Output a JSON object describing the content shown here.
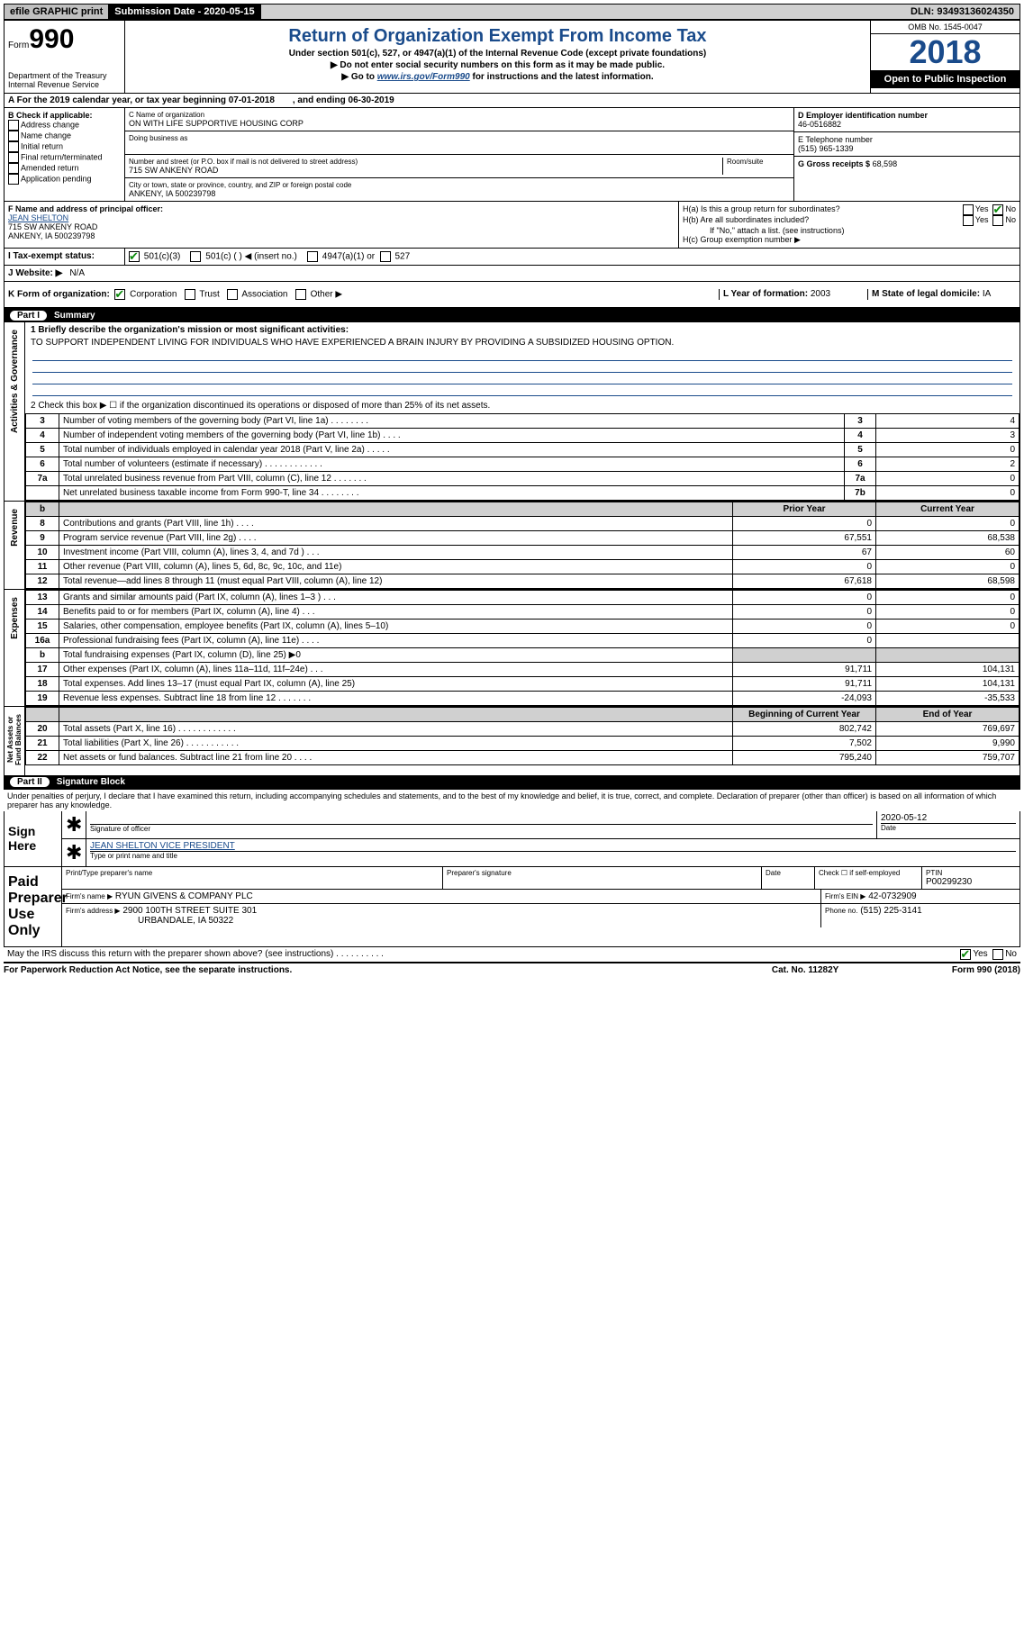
{
  "top": {
    "efile": "efile GRAPHIC print",
    "sub_label": "Submission Date - 2020-05-15",
    "dln": "DLN: 93493136024350"
  },
  "header": {
    "form_label": "Form",
    "form_num": "990",
    "dept": "Department of the Treasury\nInternal Revenue Service",
    "title": "Return of Organization Exempt From Income Tax",
    "sub1": "Under section 501(c), 527, or 4947(a)(1) of the Internal Revenue Code (except private foundations)",
    "sub2": "▶ Do not enter social security numbers on this form as it may be made public.",
    "sub3_pre": "▶ Go to ",
    "sub3_link": "www.irs.gov/Form990",
    "sub3_post": " for instructions and the latest information.",
    "omb": "OMB No. 1545-0047",
    "year": "2018",
    "open": "Open to Public Inspection"
  },
  "rowA": {
    "text_a": "A For the 2019 calendar year, or tax year beginning 07-01-2018",
    "text_b": ", and ending 06-30-2019"
  },
  "B": {
    "label": "B Check if applicable:",
    "opts": [
      "Address change",
      "Name change",
      "Initial return",
      "Final return/terminated",
      "Amended return",
      "Application pending"
    ]
  },
  "C": {
    "label": "C Name of organization",
    "org": "ON WITH LIFE SUPPORTIVE HOUSING CORP",
    "dba_label": "Doing business as",
    "addr_label": "Number and street (or P.O. box if mail is not delivered to street address)",
    "room": "Room/suite",
    "street": "715 SW ANKENY ROAD",
    "city_label": "City or town, state or province, country, and ZIP or foreign postal code",
    "city": "ANKENY, IA  500239798"
  },
  "D": {
    "label": "D Employer identification number",
    "val": "46-0516882"
  },
  "E": {
    "label": "E Telephone number",
    "val": "(515) 965-1339"
  },
  "G": {
    "label": "G Gross receipts $",
    "val": "68,598"
  },
  "F": {
    "label": "F  Name and address of principal officer:",
    "name": "JEAN SHELTON",
    "l1": "715 SW ANKENY ROAD",
    "l2": "ANKENY, IA  500239798"
  },
  "H": {
    "a": "H(a)  Is this a group return for subordinates?",
    "b": "H(b)  Are all subordinates included?",
    "b_note": "If \"No,\" attach a list. (see instructions)",
    "c": "H(c)  Group exemption number ▶",
    "yes": "Yes",
    "no": "No"
  },
  "I": {
    "label": "I  Tax-exempt status:",
    "o1": "501(c)(3)",
    "o2": "501(c) (  ) ◀ (insert no.)",
    "o3": "4947(a)(1) or",
    "o4": "527"
  },
  "J": {
    "label": "J  Website: ▶",
    "val": "N/A"
  },
  "K": {
    "label": "K Form of organization:",
    "o1": "Corporation",
    "o2": "Trust",
    "o3": "Association",
    "o4": "Other ▶"
  },
  "L": {
    "label": "L Year of formation:",
    "val": "2003"
  },
  "M": {
    "label": "M State of legal domicile:",
    "val": "IA"
  },
  "part1": {
    "label": "Part I",
    "title": "Summary"
  },
  "summary": {
    "q1": "1  Briefly describe the organization's mission or most significant activities:",
    "mission": "TO SUPPORT INDEPENDENT LIVING FOR INDIVIDUALS WHO HAVE EXPERIENCED A BRAIN INJURY BY PROVIDING A SUBSIDIZED HOUSING OPTION.",
    "q2": "2  Check this box ▶ ☐  if the organization discontinued its operations or disposed of more than 25% of its net assets.",
    "rows_top": [
      {
        "n": "3",
        "t": "Number of voting members of the governing body (Part VI, line 1a)  .   .   .   .   .   .   .   .",
        "b": "3",
        "v": "4"
      },
      {
        "n": "4",
        "t": "Number of independent voting members of the governing body (Part VI, line 1b)  .   .   .   .",
        "b": "4",
        "v": "3"
      },
      {
        "n": "5",
        "t": "Total number of individuals employed in calendar year 2018 (Part V, line 2a)  .   .   .   .   .",
        "b": "5",
        "v": "0"
      },
      {
        "n": "6",
        "t": "Total number of volunteers (estimate if necessary)   .   .   .   .   .   .   .   .   .   .   .   .",
        "b": "6",
        "v": "2"
      },
      {
        "n": "7a",
        "t": "Total unrelated business revenue from Part VIII, column (C), line 12  .   .   .   .   .   .   .",
        "b": "7a",
        "v": "0"
      },
      {
        "n": "",
        "t": "Net unrelated business taxable income from Form 990-T, line 34   .   .   .   .   .   .   .   .",
        "b": "7b",
        "v": "0"
      }
    ],
    "col_prior": "Prior Year",
    "col_curr": "Current Year",
    "rev": [
      {
        "n": "8",
        "t": "Contributions and grants (Part VIII, line 1h)   .   .   .   .",
        "p": "0",
        "c": "0"
      },
      {
        "n": "9",
        "t": "Program service revenue (Part VIII, line 2g)   .   .   .   .",
        "p": "67,551",
        "c": "68,538"
      },
      {
        "n": "10",
        "t": "Investment income (Part VIII, column (A), lines 3, 4, and 7d )   .   .   .",
        "p": "67",
        "c": "60"
      },
      {
        "n": "11",
        "t": "Other revenue (Part VIII, column (A), lines 5, 6d, 8c, 9c, 10c, and 11e)",
        "p": "0",
        "c": "0"
      },
      {
        "n": "12",
        "t": "Total revenue—add lines 8 through 11 (must equal Part VIII, column (A), line 12)",
        "p": "67,618",
        "c": "68,598"
      }
    ],
    "exp": [
      {
        "n": "13",
        "t": "Grants and similar amounts paid (Part IX, column (A), lines 1–3 )  .   .   .",
        "p": "0",
        "c": "0"
      },
      {
        "n": "14",
        "t": "Benefits paid to or for members (Part IX, column (A), line 4)  .   .   .",
        "p": "0",
        "c": "0"
      },
      {
        "n": "15",
        "t": "Salaries, other compensation, employee benefits (Part IX, column (A), lines 5–10)",
        "p": "0",
        "c": "0"
      },
      {
        "n": "16a",
        "t": "Professional fundraising fees (Part IX, column (A), line 11e)  .   .   .   .",
        "p": "0",
        "c": ""
      },
      {
        "n": "b",
        "t": "Total fundraising expenses (Part IX, column (D), line 25) ▶0",
        "p": "",
        "c": "",
        "shade": true
      },
      {
        "n": "17",
        "t": "Other expenses (Part IX, column (A), lines 11a–11d, 11f–24e)  .   .   .",
        "p": "91,711",
        "c": "104,131"
      },
      {
        "n": "18",
        "t": "Total expenses. Add lines 13–17 (must equal Part IX, column (A), line 25)",
        "p": "91,711",
        "c": "104,131"
      },
      {
        "n": "19",
        "t": "Revenue less expenses. Subtract line 18 from line 12 .   .   .   .   .   .   .",
        "p": "-24,093",
        "c": "-35,533"
      }
    ],
    "col_begin": "Beginning of Current Year",
    "col_end": "End of Year",
    "net": [
      {
        "n": "20",
        "t": "Total assets (Part X, line 16)  .   .   .   .   .   .   .   .   .   .   .   .",
        "p": "802,742",
        "c": "769,697"
      },
      {
        "n": "21",
        "t": "Total liabilities (Part X, line 26)  .   .   .   .   .   .   .   .   .   .   .",
        "p": "7,502",
        "c": "9,990"
      },
      {
        "n": "22",
        "t": "Net assets or fund balances. Subtract line 21 from line 20  .   .   .   .",
        "p": "795,240",
        "c": "759,707"
      }
    ]
  },
  "vlabels": {
    "ag": "Activities & Governance",
    "rev": "Revenue",
    "exp": "Expenses",
    "net": "Net Assets or\nFund Balances"
  },
  "part2": {
    "label": "Part II",
    "title": "Signature Block"
  },
  "perjury": "Under penalties of perjury, I declare that I have examined this return, including accompanying schedules and statements, and to the best of my knowledge and belief, it is true, correct, and complete. Declaration of preparer (other than officer) is based on all information of which preparer has any knowledge.",
  "sign": {
    "label": "Sign Here",
    "sig_of": "Signature of officer",
    "date_l": "Date",
    "date_v": "2020-05-12",
    "name": "JEAN SHELTON  VICE PRESIDENT",
    "name_l": "Type or print name and title"
  },
  "prep": {
    "label": "Paid Preparer Use Only",
    "h1": "Print/Type preparer's name",
    "h2": "Preparer's signature",
    "h3": "Date",
    "h4": "Check ☐ if self-employed",
    "h5": "PTIN",
    "ptin": "P00299230",
    "firm_l": "Firm's name   ▶",
    "firm": "RYUN GIVENS & COMPANY PLC",
    "ein_l": "Firm's EIN ▶",
    "ein": "42-0732909",
    "addr_l": "Firm's address ▶",
    "addr1": "2900 100TH STREET SUITE 301",
    "addr2": "URBANDALE, IA  50322",
    "phone_l": "Phone no.",
    "phone": "(515) 225-3141"
  },
  "discuss": "May the IRS discuss this return with the preparer shown above? (see instructions)  .   .   .   .   .   .   .   .   .   .",
  "foot": {
    "l": "For Paperwork Reduction Act Notice, see the separate instructions.",
    "c": "Cat. No. 11282Y",
    "r": "Form 990 (2018)"
  }
}
